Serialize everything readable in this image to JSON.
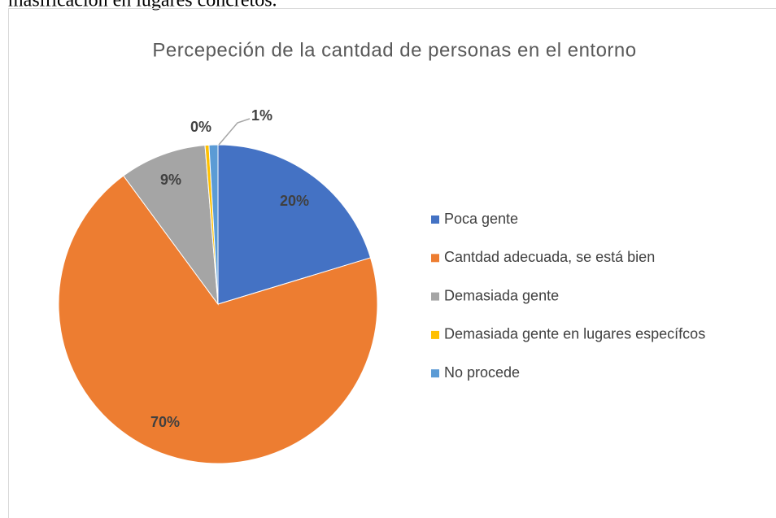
{
  "document_text": "masificación en lugares concretos.",
  "chart_data": {
    "type": "pie",
    "title": "Percepeción de la cantdad de personas en el entorno",
    "categories": [
      "Poca gente",
      "Cantdad adecuada, se está bien",
      "Demasiada gente",
      "Demasiada gente en lugares específcos",
      "No procede"
    ],
    "values": [
      20.3,
      69.6,
      8.8,
      0.4,
      0.9
    ],
    "value_labels": [
      "20%",
      "70%",
      "9%",
      "0%",
      "1%"
    ],
    "colors": [
      "#4472c4",
      "#ed7d31",
      "#a5a5a5",
      "#ffc000",
      "#5b9bd5"
    ],
    "legend": "right"
  }
}
